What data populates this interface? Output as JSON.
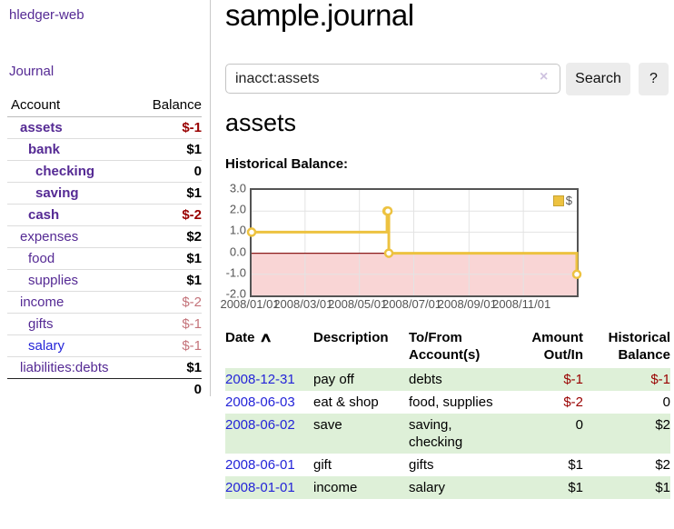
{
  "app_title": "hledger-web",
  "sidebar": {
    "journal_link": "Journal",
    "account_header": "Account",
    "balance_header": "Balance",
    "accounts": [
      {
        "name": "assets",
        "balance": "$-1"
      },
      {
        "name": "bank",
        "balance": "$1"
      },
      {
        "name": "checking",
        "balance": "0"
      },
      {
        "name": "saving",
        "balance": "$1"
      },
      {
        "name": "cash",
        "balance": "$-2"
      },
      {
        "name": "expenses",
        "balance": "$2"
      },
      {
        "name": "food",
        "balance": "$1"
      },
      {
        "name": "supplies",
        "balance": "$1"
      },
      {
        "name": "income",
        "balance": "$-2"
      },
      {
        "name": "gifts",
        "balance": "$-1"
      },
      {
        "name": "salary",
        "balance": "$-1"
      },
      {
        "name": "liabilities:debts",
        "balance": "$1"
      }
    ],
    "total": "0"
  },
  "main": {
    "title": "sample.journal",
    "search": {
      "value": "inacct:assets",
      "clear_icon": "×",
      "button": "Search",
      "help": "?"
    },
    "heading": "assets",
    "chart_label": "Historical Balance:"
  },
  "chart_data": {
    "type": "line",
    "style": "steps",
    "title": "Historical Balance",
    "series": [
      {
        "name": "$",
        "color": "#edc240",
        "points": [
          {
            "date": "2008-01-01",
            "day": 0,
            "y": 1
          },
          {
            "date": "2008-06-01",
            "day": 152,
            "y": 2
          },
          {
            "date": "2008-06-02",
            "day": 153,
            "y": 2
          },
          {
            "date": "2008-06-03",
            "day": 154,
            "y": 0
          },
          {
            "date": "2008-12-31",
            "day": 365,
            "y": -1
          }
        ]
      }
    ],
    "x_ticks": [
      {
        "label": "2008/01/01",
        "day": 0
      },
      {
        "label": "2008/03/01",
        "day": 60
      },
      {
        "label": "2008/05/01",
        "day": 121
      },
      {
        "label": "2008/07/01",
        "day": 182
      },
      {
        "label": "2008/09/01",
        "day": 244
      },
      {
        "label": "2008/11/01",
        "day": 305
      }
    ],
    "y_ticks": [
      {
        "label": "3.0",
        "v": 3
      },
      {
        "label": "2.0",
        "v": 2
      },
      {
        "label": "1.0",
        "v": 1
      },
      {
        "label": "0.0",
        "v": 0
      },
      {
        "label": "-1.0",
        "v": -1
      },
      {
        "label": "-2.0",
        "v": -2
      }
    ],
    "x_range_days": [
      0,
      365
    ],
    "ylim": [
      -2,
      3
    ],
    "grid": true,
    "grid_color": "#e3e3e3",
    "zero_line_color": "#8b1a1a",
    "negative_region_color": "#f9d5d5",
    "legend": {
      "label": "$",
      "position": "top-right"
    }
  },
  "register": {
    "headers": {
      "date": "Date",
      "sort_icon": "∧",
      "description": "Description",
      "accounts_line1": "To/From",
      "accounts_line2": "Account(s)",
      "amount_line1": "Amount",
      "amount_line2": "Out/In",
      "balance_line1": "Historical",
      "balance_line2": "Balance"
    },
    "rows": [
      {
        "date": "2008-12-31",
        "description": "pay off",
        "accounts": "debts",
        "amount": "$-1",
        "balance": "$-1"
      },
      {
        "date": "2008-06-03",
        "description": "eat & shop",
        "accounts": "food, supplies",
        "amount": "$-2",
        "balance": "0"
      },
      {
        "date": "2008-06-02",
        "description": "save",
        "accounts": "saving, checking",
        "amount": "0",
        "balance": "$2"
      },
      {
        "date": "2008-06-01",
        "description": "gift",
        "accounts": "gifts",
        "amount": "$1",
        "balance": "$2"
      },
      {
        "date": "2008-01-01",
        "description": "income",
        "accounts": "salary",
        "amount": "$1",
        "balance": "$1"
      }
    ]
  }
}
